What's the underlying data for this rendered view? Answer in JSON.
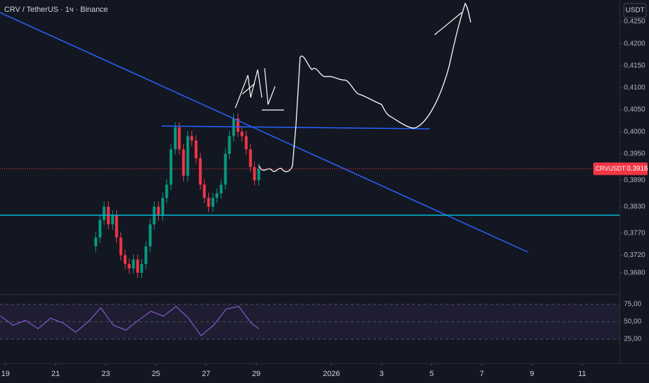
{
  "chart_data": [
    {
      "type": "candlestick",
      "title": "CRV / TetherUS · 1ч · Binance",
      "currency": "USDT",
      "up_color": "#089981",
      "down_color": "#f23645",
      "x": [
        3.6,
        3.77,
        3.93,
        4.1,
        4.27,
        4.43,
        4.6,
        4.77,
        4.93,
        5.1,
        5.27,
        5.43,
        5.6,
        5.77,
        5.93,
        6.1,
        6.27,
        6.43,
        6.6,
        6.77,
        6.93,
        7.1,
        7.27,
        7.43,
        7.6,
        7.77,
        7.93,
        8.1,
        8.27,
        8.43,
        8.6,
        8.77,
        8.93,
        9.1,
        9.27,
        9.43,
        9.6,
        9.77,
        9.93,
        10.1
      ],
      "open": [
        0.374,
        0.376,
        0.38,
        0.383,
        0.379,
        0.381,
        0.376,
        0.372,
        0.37,
        0.369,
        0.371,
        0.368,
        0.37,
        0.374,
        0.379,
        0.383,
        0.381,
        0.385,
        0.388,
        0.396,
        0.401,
        0.396,
        0.39,
        0.399,
        0.398,
        0.394,
        0.388,
        0.385,
        0.383,
        0.385,
        0.386,
        0.388,
        0.395,
        0.399,
        0.403,
        0.4,
        0.399,
        0.396,
        0.392,
        0.389
      ],
      "high": [
        0.3772,
        0.3812,
        0.3842,
        0.3842,
        0.3822,
        0.3822,
        0.3772,
        0.3732,
        0.3712,
        0.3722,
        0.3722,
        0.3712,
        0.3752,
        0.3802,
        0.3842,
        0.3842,
        0.3862,
        0.3892,
        0.3972,
        0.4022,
        0.4022,
        0.3972,
        0.4002,
        0.4002,
        0.3992,
        0.3952,
        0.3892,
        0.3862,
        0.3862,
        0.3872,
        0.3892,
        0.3962,
        0.4002,
        0.4042,
        0.4042,
        0.4012,
        0.4002,
        0.3972,
        0.3932,
        0.3928
      ],
      "low": [
        0.3728,
        0.3748,
        0.3788,
        0.3778,
        0.3778,
        0.3748,
        0.3708,
        0.3688,
        0.3678,
        0.3678,
        0.3668,
        0.3668,
        0.3688,
        0.3728,
        0.3778,
        0.3798,
        0.3798,
        0.3838,
        0.3868,
        0.3948,
        0.3948,
        0.3888,
        0.3888,
        0.3968,
        0.3928,
        0.3868,
        0.3838,
        0.3818,
        0.3818,
        0.3838,
        0.3848,
        0.3868,
        0.3938,
        0.3978,
        0.3988,
        0.3978,
        0.3948,
        0.3908,
        0.3878,
        0.3878
      ],
      "close": [
        0.376,
        0.38,
        0.383,
        0.379,
        0.381,
        0.376,
        0.372,
        0.37,
        0.369,
        0.371,
        0.368,
        0.37,
        0.374,
        0.379,
        0.383,
        0.381,
        0.385,
        0.388,
        0.396,
        0.401,
        0.396,
        0.39,
        0.399,
        0.398,
        0.394,
        0.388,
        0.385,
        0.383,
        0.385,
        0.386,
        0.388,
        0.395,
        0.399,
        0.403,
        0.4,
        0.399,
        0.396,
        0.392,
        0.389,
        0.3916
      ],
      "price_tag": {
        "name": "CRVUSDT",
        "value": 0.3916,
        "label": "0,3916",
        "color": "#f23645"
      },
      "ylim": [
        0.3648,
        0.4299
      ],
      "yticks": [
        {
          "value": 0.425,
          "label": "0,4250"
        },
        {
          "value": 0.42,
          "label": "0,4200"
        },
        {
          "value": 0.415,
          "label": "0,4150"
        },
        {
          "value": 0.41,
          "label": "0,4100"
        },
        {
          "value": 0.405,
          "label": "0,4050"
        },
        {
          "value": 0.4,
          "label": "0,4000"
        },
        {
          "value": 0.395,
          "label": "0,3950"
        },
        {
          "value": 0.389,
          "label": "0,3890"
        },
        {
          "value": 0.383,
          "label": "0,3830"
        },
        {
          "value": 0.377,
          "label": "0,3770"
        },
        {
          "value": 0.372,
          "label": "0,3720"
        },
        {
          "value": 0.368,
          "label": "0,3680"
        }
      ],
      "xlim": [
        -0.22,
        24.5
      ],
      "xticks": [
        {
          "value": 0,
          "label": "19"
        },
        {
          "value": 2,
          "label": "21"
        },
        {
          "value": 4,
          "label": "23"
        },
        {
          "value": 6,
          "label": "25"
        },
        {
          "value": 8,
          "label": "27"
        },
        {
          "value": 10,
          "label": "29"
        },
        {
          "value": 13,
          "label": "2026"
        },
        {
          "value": 15,
          "label": "3"
        },
        {
          "value": 17,
          "label": "5"
        },
        {
          "value": 19,
          "label": "7"
        },
        {
          "value": 21,
          "label": "9"
        },
        {
          "value": 23,
          "label": "11"
        }
      ]
    },
    {
      "type": "line",
      "color": "#7e57c2",
      "x": [
        -0.2,
        0.3,
        0.8,
        1.3,
        1.8,
        2.3,
        2.8,
        3.3,
        3.8,
        4.3,
        4.8,
        5.3,
        5.8,
        6.3,
        6.8,
        7.3,
        7.8,
        8.3,
        8.8,
        9.3,
        9.8,
        10.1
      ],
      "values": [
        58,
        45,
        52,
        40,
        55,
        48,
        35,
        50,
        70,
        45,
        38,
        52,
        65,
        58,
        72,
        55,
        30,
        45,
        68,
        72,
        48,
        40
      ],
      "xlim": [
        -0.22,
        24.5
      ],
      "ylim": [
        12,
        87
      ],
      "yticks": [
        {
          "value": 75,
          "label": "75,00"
        },
        {
          "value": 50,
          "label": "50,00"
        },
        {
          "value": 25,
          "label": "25,00"
        }
      ]
    }
  ]
}
